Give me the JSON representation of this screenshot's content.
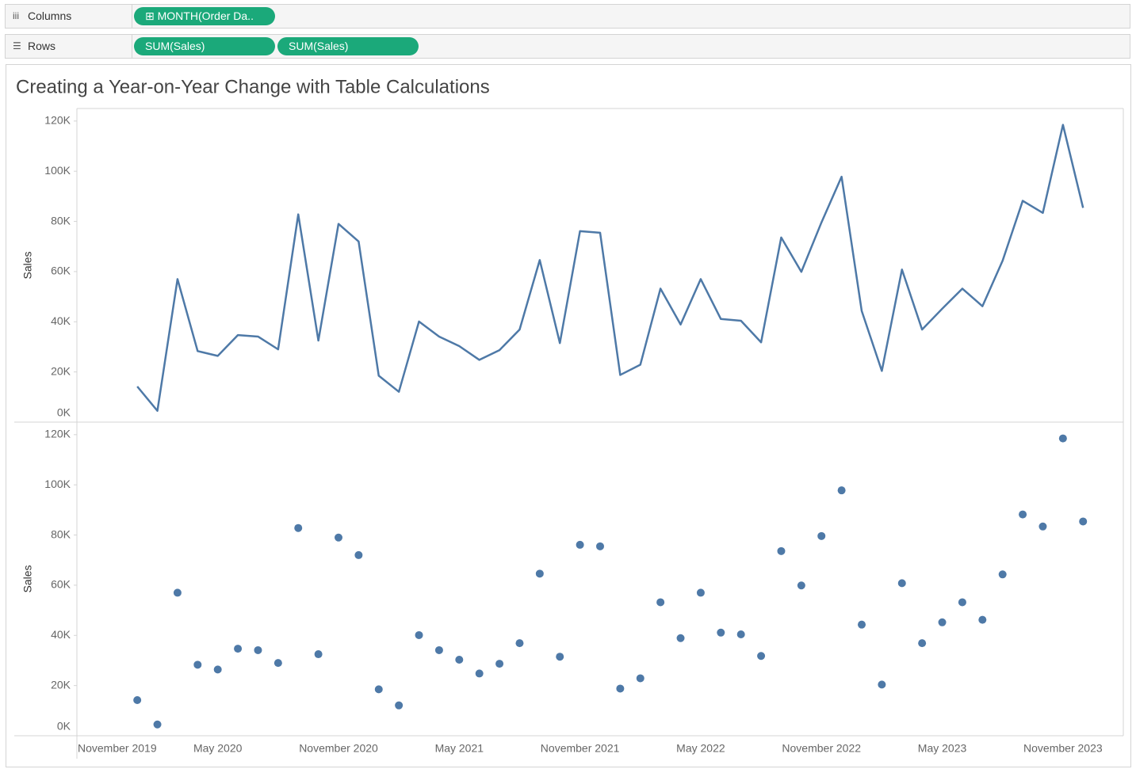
{
  "title": "Creating a Year-on-Year Change with Table Calculations",
  "shelves": {
    "columns": {
      "label": "Columns",
      "pills": [
        "MONTH(Order Da.."
      ]
    },
    "rows": {
      "label": "Rows",
      "pills": [
        "SUM(Sales)",
        "SUM(Sales)"
      ]
    }
  },
  "chart_data": [
    {
      "type": "line",
      "y_label": "Sales",
      "color": "#4e79a7",
      "x": [
        "2020-01",
        "2020-02",
        "2020-03",
        "2020-04",
        "2020-05",
        "2020-06",
        "2020-07",
        "2020-08",
        "2020-09",
        "2020-10",
        "2020-11",
        "2020-12",
        "2021-01",
        "2021-02",
        "2021-03",
        "2021-04",
        "2021-05",
        "2021-06",
        "2021-07",
        "2021-08",
        "2021-09",
        "2021-10",
        "2021-11",
        "2021-12",
        "2022-01",
        "2022-02",
        "2022-03",
        "2022-04",
        "2022-05",
        "2022-06",
        "2022-07",
        "2022-08",
        "2022-09",
        "2022-10",
        "2022-11",
        "2022-12",
        "2023-01",
        "2023-02",
        "2023-03",
        "2023-04",
        "2023-05",
        "2023-06",
        "2023-07",
        "2023-08",
        "2023-09",
        "2023-10",
        "2023-11",
        "2023-12"
      ],
      "values": [
        14200,
        4500,
        57000,
        28300,
        26400,
        34700,
        34100,
        29000,
        82800,
        32500,
        79000,
        72000,
        18500,
        12100,
        40100,
        34100,
        30300,
        24800,
        28700,
        36900,
        64600,
        31500,
        76100,
        75500,
        18800,
        22900,
        53200,
        38900,
        57000,
        41100,
        40400,
        31800,
        73600,
        59900,
        79600,
        97800,
        44300,
        20400,
        60800,
        36900,
        45200,
        53200,
        46200,
        64300,
        88200,
        83400,
        118500,
        85400
      ],
      "xlim": [
        "2019-10",
        "2024-02"
      ],
      "ylim": [
        0,
        125000
      ],
      "yticks": [
        {
          "value": 0,
          "label": "0K"
        },
        {
          "value": 20000,
          "label": "20K"
        },
        {
          "value": 40000,
          "label": "40K"
        },
        {
          "value": 60000,
          "label": "60K"
        },
        {
          "value": 80000,
          "label": "80K"
        },
        {
          "value": 100000,
          "label": "100K"
        },
        {
          "value": 120000,
          "label": "120K"
        }
      ]
    },
    {
      "type": "scatter",
      "y_label": "Sales",
      "color": "#4e79a7",
      "x": [
        "2020-01",
        "2020-02",
        "2020-03",
        "2020-04",
        "2020-05",
        "2020-06",
        "2020-07",
        "2020-08",
        "2020-09",
        "2020-10",
        "2020-11",
        "2020-12",
        "2021-01",
        "2021-02",
        "2021-03",
        "2021-04",
        "2021-05",
        "2021-06",
        "2021-07",
        "2021-08",
        "2021-09",
        "2021-10",
        "2021-11",
        "2021-12",
        "2022-01",
        "2022-02",
        "2022-03",
        "2022-04",
        "2022-05",
        "2022-06",
        "2022-07",
        "2022-08",
        "2022-09",
        "2022-10",
        "2022-11",
        "2022-12",
        "2023-01",
        "2023-02",
        "2023-03",
        "2023-04",
        "2023-05",
        "2023-06",
        "2023-07",
        "2023-08",
        "2023-09",
        "2023-10",
        "2023-11",
        "2023-12"
      ],
      "values": [
        14200,
        4500,
        57000,
        28300,
        26400,
        34700,
        34100,
        29000,
        82800,
        32500,
        79000,
        72000,
        18500,
        12100,
        40100,
        34100,
        30300,
        24800,
        28700,
        36900,
        64600,
        31500,
        76100,
        75500,
        18800,
        22900,
        53200,
        38900,
        57000,
        41100,
        40400,
        31800,
        73600,
        59900,
        79600,
        97800,
        44300,
        20400,
        60800,
        36900,
        45200,
        53200,
        46200,
        64300,
        88200,
        83400,
        118500,
        85400
      ],
      "xlim": [
        "2019-10",
        "2024-02"
      ],
      "ylim": [
        0,
        125000
      ],
      "yticks": [
        {
          "value": 0,
          "label": "0K"
        },
        {
          "value": 20000,
          "label": "20K"
        },
        {
          "value": 40000,
          "label": "40K"
        },
        {
          "value": 60000,
          "label": "60K"
        },
        {
          "value": 80000,
          "label": "80K"
        },
        {
          "value": 100000,
          "label": "100K"
        },
        {
          "value": 120000,
          "label": "120K"
        }
      ],
      "xticks": [
        {
          "value": "2019-11",
          "label": "November 2019"
        },
        {
          "value": "2020-05",
          "label": "May 2020"
        },
        {
          "value": "2020-11",
          "label": "November 2020"
        },
        {
          "value": "2021-05",
          "label": "May 2021"
        },
        {
          "value": "2021-11",
          "label": "November 2021"
        },
        {
          "value": "2022-05",
          "label": "May 2022"
        },
        {
          "value": "2022-11",
          "label": "November 2022"
        },
        {
          "value": "2023-05",
          "label": "May 2023"
        },
        {
          "value": "2023-11",
          "label": "November 2023"
        }
      ]
    }
  ]
}
